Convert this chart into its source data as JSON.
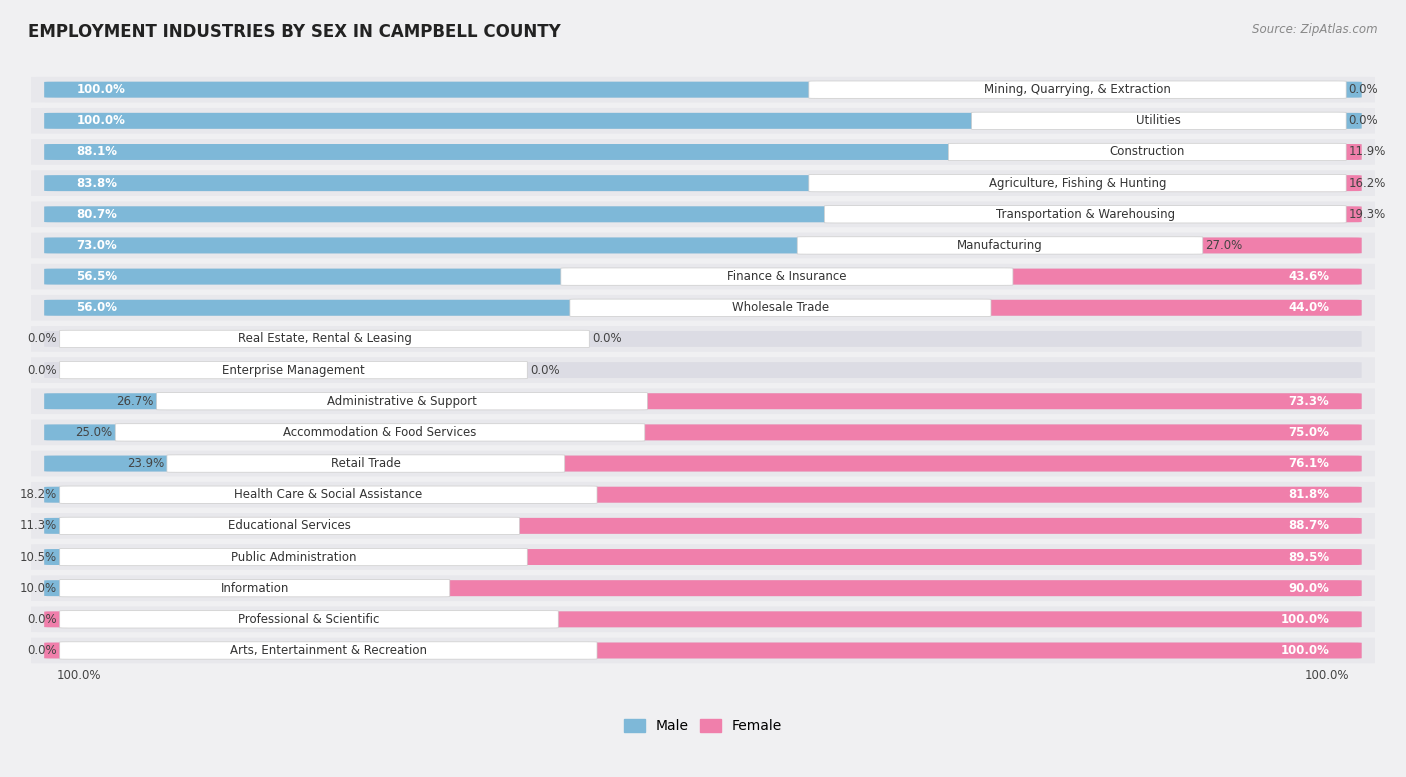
{
  "title": "EMPLOYMENT INDUSTRIES BY SEX IN CAMPBELL COUNTY",
  "source": "Source: ZipAtlas.com",
  "industries": [
    {
      "name": "Mining, Quarrying, & Extraction",
      "male": 100.0,
      "female": 0.0
    },
    {
      "name": "Utilities",
      "male": 100.0,
      "female": 0.0
    },
    {
      "name": "Construction",
      "male": 88.1,
      "female": 11.9
    },
    {
      "name": "Agriculture, Fishing & Hunting",
      "male": 83.8,
      "female": 16.2
    },
    {
      "name": "Transportation & Warehousing",
      "male": 80.7,
      "female": 19.3
    },
    {
      "name": "Manufacturing",
      "male": 73.0,
      "female": 27.0
    },
    {
      "name": "Finance & Insurance",
      "male": 56.5,
      "female": 43.6
    },
    {
      "name": "Wholesale Trade",
      "male": 56.0,
      "female": 44.0
    },
    {
      "name": "Real Estate, Rental & Leasing",
      "male": 0.0,
      "female": 0.0
    },
    {
      "name": "Enterprise Management",
      "male": 0.0,
      "female": 0.0
    },
    {
      "name": "Administrative & Support",
      "male": 26.7,
      "female": 73.3
    },
    {
      "name": "Accommodation & Food Services",
      "male": 25.0,
      "female": 75.0
    },
    {
      "name": "Retail Trade",
      "male": 23.9,
      "female": 76.1
    },
    {
      "name": "Health Care & Social Assistance",
      "male": 18.2,
      "female": 81.8
    },
    {
      "name": "Educational Services",
      "male": 11.3,
      "female": 88.7
    },
    {
      "name": "Public Administration",
      "male": 10.5,
      "female": 89.5
    },
    {
      "name": "Information",
      "male": 10.0,
      "female": 90.0
    },
    {
      "name": "Professional & Scientific",
      "male": 0.0,
      "female": 100.0
    },
    {
      "name": "Arts, Entertainment & Recreation",
      "male": 0.0,
      "female": 100.0
    }
  ],
  "male_color": "#7eb8d8",
  "female_color": "#f07fab",
  "bg_color": "#f0f0f2",
  "row_bg_color": "#e8e8ec",
  "bar_bg_color": "#dcdce4",
  "label_box_color": "#ffffff",
  "title_color": "#222222",
  "source_color": "#888888",
  "label_fontsize": 8.5,
  "title_fontsize": 12,
  "legend_fontsize": 10
}
